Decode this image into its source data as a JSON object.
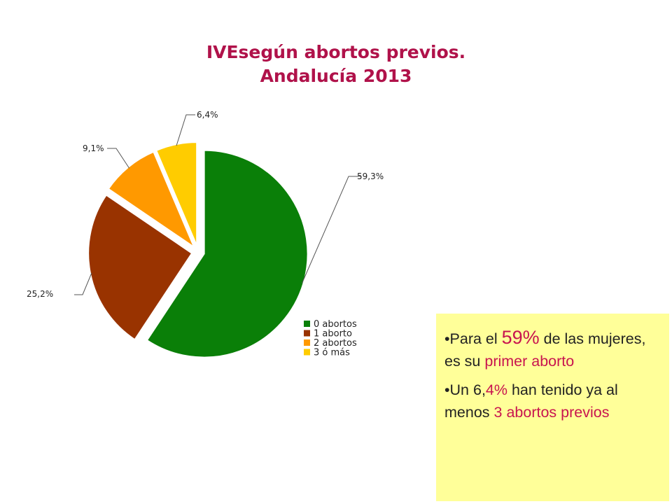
{
  "chart_data": {
    "type": "pie",
    "title": [
      "IVEsegún abortos previos.",
      "Andalucía 2013"
    ],
    "categories": [
      "0 abortos",
      "1 aborto",
      "2 abortos",
      "3 ó más"
    ],
    "values": [
      59.3,
      25.2,
      9.1,
      6.4
    ],
    "data_labels": [
      "59,3%",
      "25,2%",
      "9,1%",
      "6,4%"
    ],
    "colors": [
      "#0a7f08",
      "#993300",
      "#ff9900",
      "#ffcc00"
    ],
    "legend_position": "bottom-right"
  },
  "note": {
    "bullet1": {
      "a": "•Para el ",
      "b": "59%",
      "c": " de las mujeres, es su ",
      "d": "primer aborto"
    },
    "bullet2": {
      "a": "•Un 6,",
      "b": "4%",
      "c": " han tenido ya al menos ",
      "d": "3 abortos previos"
    }
  }
}
